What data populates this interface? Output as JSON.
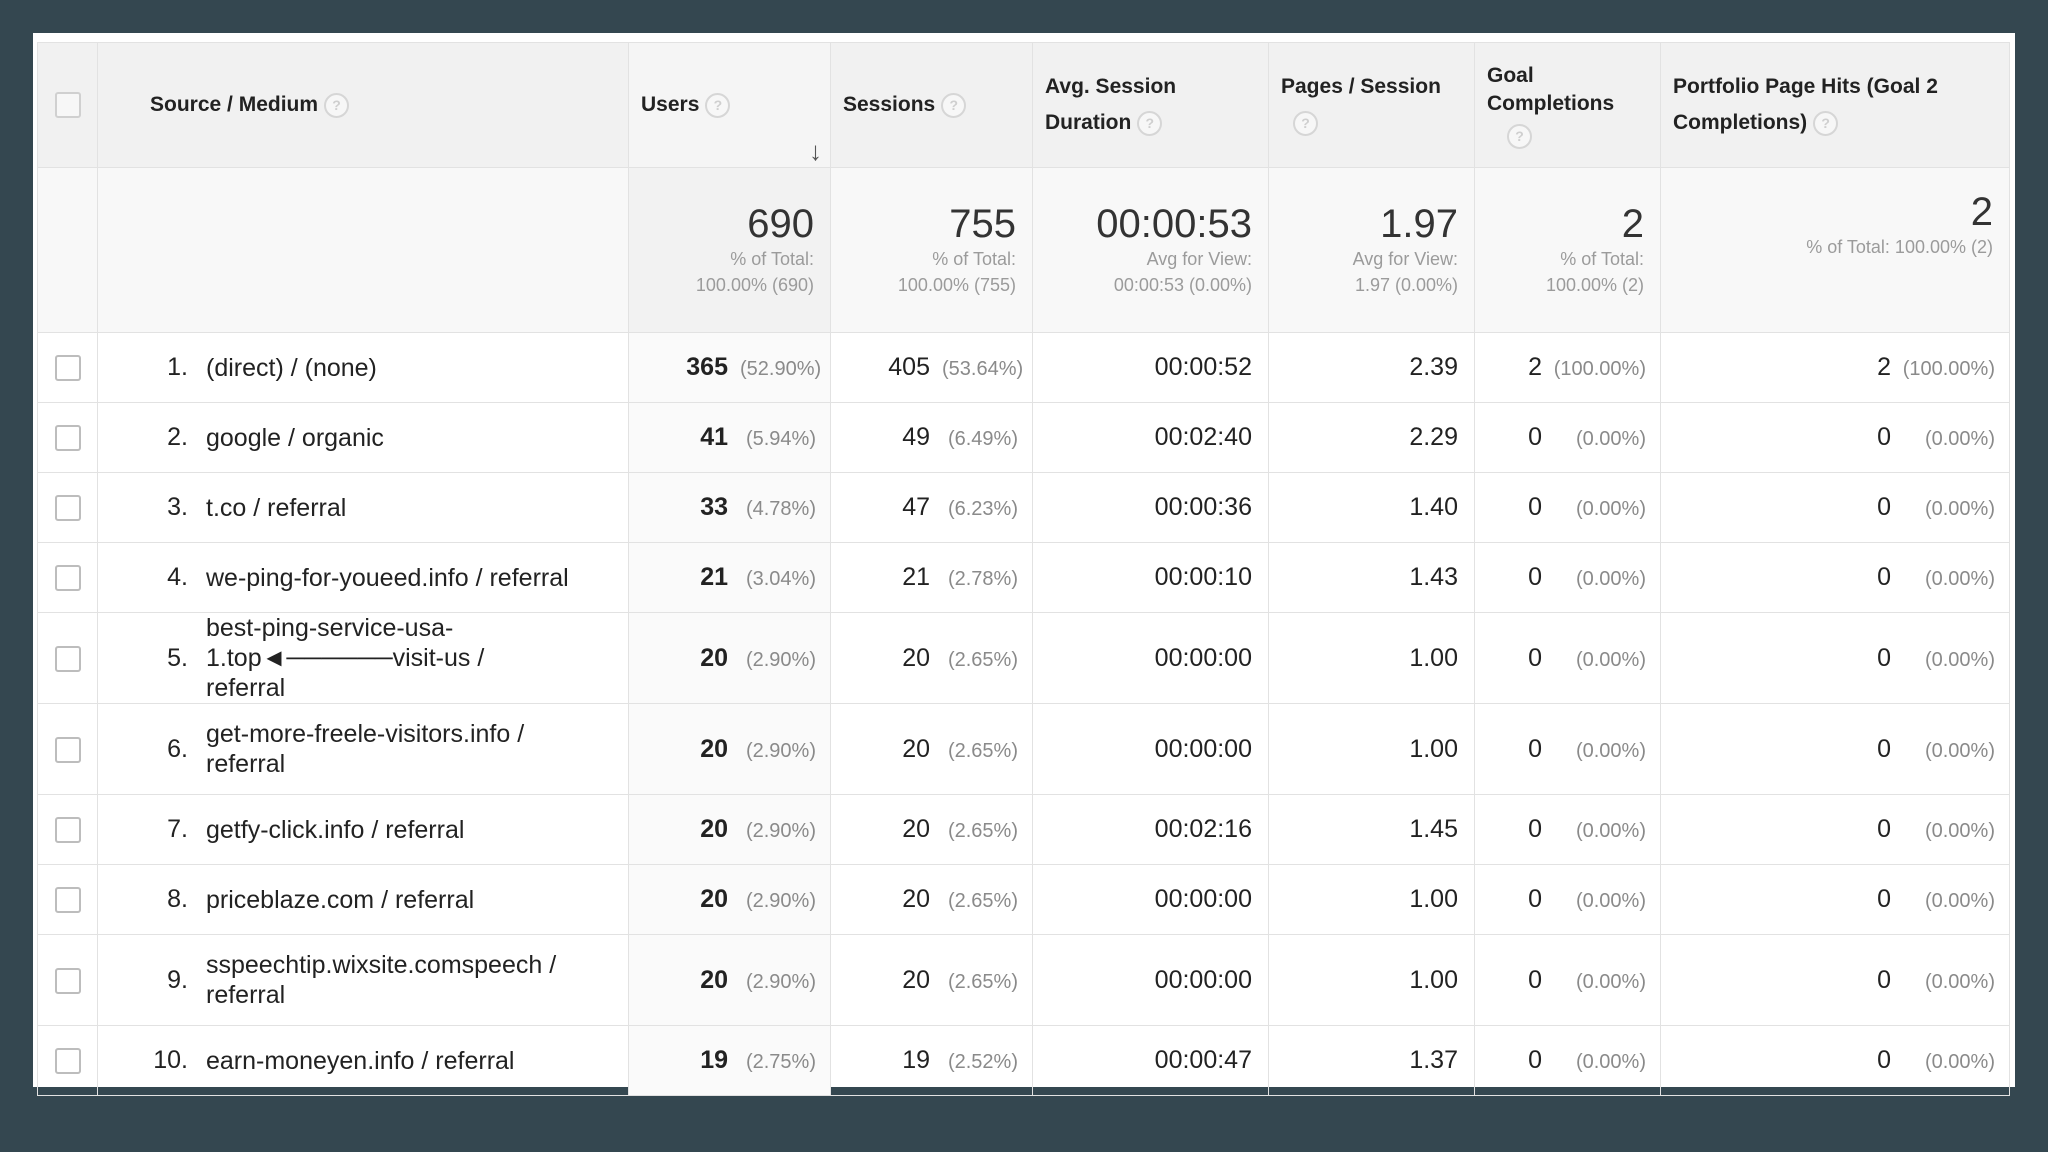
{
  "columns": {
    "source_medium": "Source / Medium",
    "users": "Users",
    "sessions": "Sessions",
    "avg_session_duration": "Avg. Session Duration",
    "pages_per_session": "Pages / Session",
    "goal_completions": "Goal Completions",
    "portfolio_page_hits": "Portfolio Page Hits (Goal 2 Completions)",
    "help_glyph": "?",
    "sort_glyph": "↓",
    "sorted_by": "Users",
    "sort_direction": "descending"
  },
  "totals": {
    "users": {
      "value": "690",
      "sub1": "% of Total:",
      "sub2": "100.00% (690)"
    },
    "sessions": {
      "value": "755",
      "sub1": "% of Total:",
      "sub2": "100.00% (755)"
    },
    "avg_session_duration": {
      "value": "00:00:53",
      "sub1": "Avg for View:",
      "sub2": "00:00:53 (0.00%)"
    },
    "pages_per_session": {
      "value": "1.97",
      "sub1": "Avg for View:",
      "sub2": "1.97 (0.00%)"
    },
    "goal_completions": {
      "value": "2",
      "sub1": "% of Total:",
      "sub2": "100.00% (2)"
    },
    "portfolio_page_hits": {
      "value": "2",
      "sub1": "% of Total: 100.00% (2)",
      "sub2": ""
    }
  },
  "rows": [
    {
      "rank": "1.",
      "source": "(direct) / (none)",
      "users": "365",
      "users_pct": "(52.90%)",
      "sessions": "405",
      "sessions_pct": "(53.64%)",
      "duration": "00:00:52",
      "pages": "2.39",
      "goal": "2",
      "goal_pct": "(100.00%)",
      "hits": "2",
      "hits_pct": "(100.00%)"
    },
    {
      "rank": "2.",
      "source": "google / organic",
      "users": "41",
      "users_pct": "(5.94%)",
      "sessions": "49",
      "sessions_pct": "(6.49%)",
      "duration": "00:02:40",
      "pages": "2.29",
      "goal": "0",
      "goal_pct": "(0.00%)",
      "hits": "0",
      "hits_pct": "(0.00%)"
    },
    {
      "rank": "3.",
      "source": "t.co / referral",
      "users": "33",
      "users_pct": "(4.78%)",
      "sessions": "47",
      "sessions_pct": "(6.23%)",
      "duration": "00:00:36",
      "pages": "1.40",
      "goal": "0",
      "goal_pct": "(0.00%)",
      "hits": "0",
      "hits_pct": "(0.00%)"
    },
    {
      "rank": "4.",
      "source": "we-ping-for-youeed.info / referral",
      "users": "21",
      "users_pct": "(3.04%)",
      "sessions": "21",
      "sessions_pct": "(2.78%)",
      "duration": "00:00:10",
      "pages": "1.43",
      "goal": "0",
      "goal_pct": "(0.00%)",
      "hits": "0",
      "hits_pct": "(0.00%)"
    },
    {
      "rank": "5.",
      "source": "best-ping-service-usa-1.top◄──────visit-us / referral",
      "users": "20",
      "users_pct": "(2.90%)",
      "sessions": "20",
      "sessions_pct": "(2.65%)",
      "duration": "00:00:00",
      "pages": "1.00",
      "goal": "0",
      "goal_pct": "(0.00%)",
      "hits": "0",
      "hits_pct": "(0.00%)"
    },
    {
      "rank": "6.",
      "source": "get-more-freele-visitors.info / referral",
      "users": "20",
      "users_pct": "(2.90%)",
      "sessions": "20",
      "sessions_pct": "(2.65%)",
      "duration": "00:00:00",
      "pages": "1.00",
      "goal": "0",
      "goal_pct": "(0.00%)",
      "hits": "0",
      "hits_pct": "(0.00%)"
    },
    {
      "rank": "7.",
      "source": "getfy-click.info / referral",
      "users": "20",
      "users_pct": "(2.90%)",
      "sessions": "20",
      "sessions_pct": "(2.65%)",
      "duration": "00:02:16",
      "pages": "1.45",
      "goal": "0",
      "goal_pct": "(0.00%)",
      "hits": "0",
      "hits_pct": "(0.00%)"
    },
    {
      "rank": "8.",
      "source": "priceblaze.com / referral",
      "users": "20",
      "users_pct": "(2.90%)",
      "sessions": "20",
      "sessions_pct": "(2.65%)",
      "duration": "00:00:00",
      "pages": "1.00",
      "goal": "0",
      "goal_pct": "(0.00%)",
      "hits": "0",
      "hits_pct": "(0.00%)"
    },
    {
      "rank": "9.",
      "source": "sspeechtip.wixsite.comspeech / referral",
      "users": "20",
      "users_pct": "(2.90%)",
      "sessions": "20",
      "sessions_pct": "(2.65%)",
      "duration": "00:00:00",
      "pages": "1.00",
      "goal": "0",
      "goal_pct": "(0.00%)",
      "hits": "0",
      "hits_pct": "(0.00%)"
    },
    {
      "rank": "10.",
      "source": "earn-moneyen.info / referral",
      "users": "19",
      "users_pct": "(2.75%)",
      "sessions": "19",
      "sessions_pct": "(2.52%)",
      "duration": "00:00:47",
      "pages": "1.37",
      "goal": "0",
      "goal_pct": "(0.00%)",
      "hits": "0",
      "hits_pct": "(0.00%)"
    }
  ]
}
